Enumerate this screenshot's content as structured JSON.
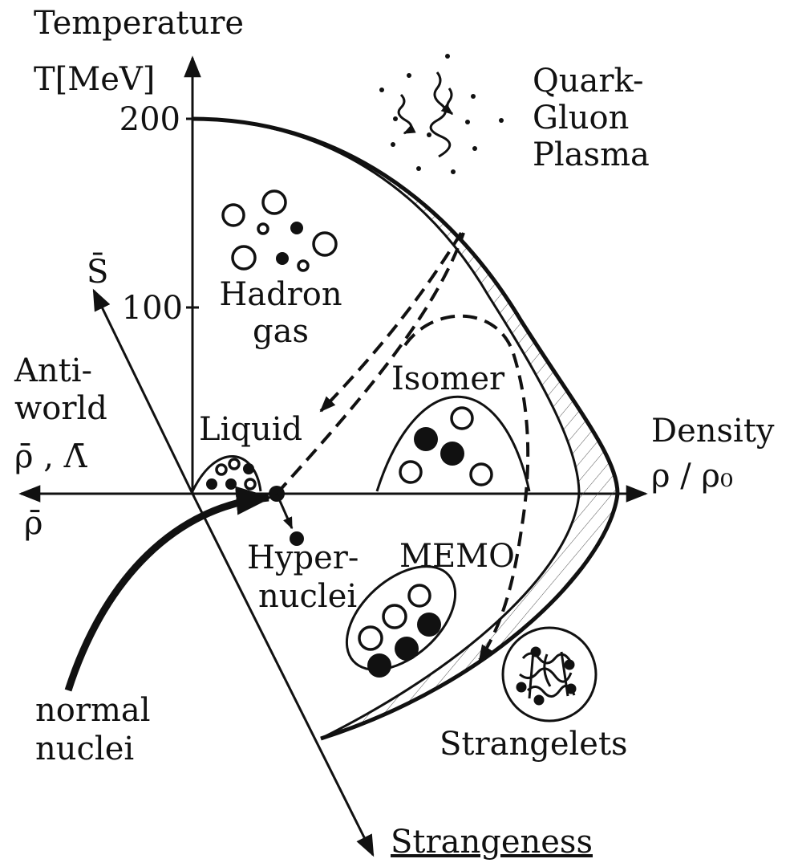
{
  "axes": {
    "temperature": {
      "title": "Temperature",
      "unit": "T[MeV]",
      "ticks": [
        200,
        100
      ]
    },
    "density": {
      "title": "Density",
      "unit": "ρ / ρ₀"
    },
    "strangeness": {
      "title": "Strangeness",
      "anti_label": "S̄"
    },
    "antiworld": {
      "title": [
        "Anti-",
        "world"
      ],
      "labels": "ρ̄ , Λ̄",
      "density": "ρ̄"
    }
  },
  "regions": {
    "qgp": [
      "Quark-",
      "Gluon",
      "Plasma"
    ],
    "hadron_gas": [
      "Hadron",
      "gas"
    ],
    "liquid": "Liquid",
    "isomer": "Isomer",
    "hypernuclei": [
      "Hyper-",
      "nuclei"
    ],
    "memo": "MEMO",
    "normal_nuclei": [
      "normal",
      "nuclei"
    ],
    "strangelets": "Strangelets"
  }
}
